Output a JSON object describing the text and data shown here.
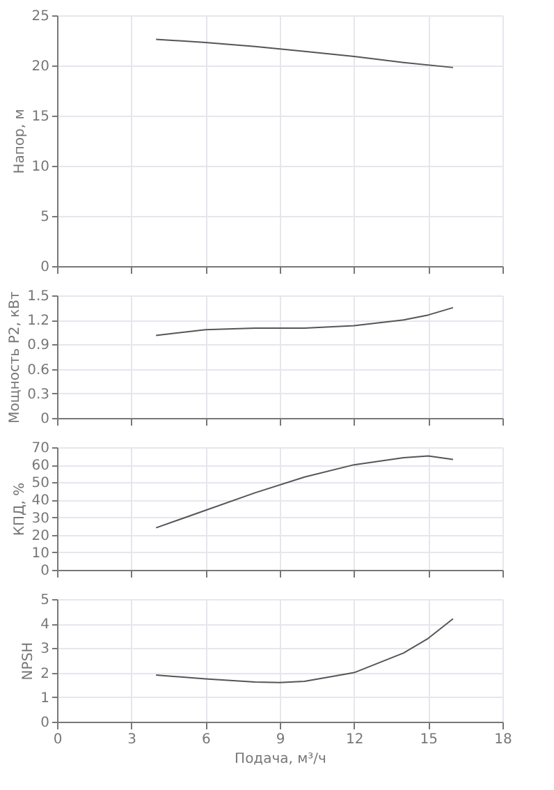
{
  "chart_data": [
    {
      "type": "line",
      "ylabel": "Напор, м",
      "x": [
        4,
        6,
        8,
        10,
        12,
        14,
        16
      ],
      "series": [
        {
          "color": "#555555",
          "values": [
            22.6,
            22.3,
            21.9,
            21.4,
            20.9,
            20.3,
            19.8
          ]
        }
      ],
      "xlim": [
        0,
        18
      ],
      "xticks": [
        0,
        3,
        6,
        9,
        12,
        15,
        18
      ],
      "ylim": [
        0,
        25
      ],
      "yticks": [
        0,
        5,
        10,
        15,
        20,
        25
      ],
      "grid": true,
      "tick_labels": "y"
    },
    {
      "type": "line",
      "ylabel": "Мощность P2, кВт",
      "x": [
        4,
        6,
        8,
        10,
        12,
        14,
        15,
        16
      ],
      "series": [
        {
          "color": "#555555",
          "values": [
            1.01,
            1.08,
            1.1,
            1.1,
            1.13,
            1.2,
            1.26,
            1.35
          ]
        }
      ],
      "xlim": [
        0,
        18
      ],
      "xticks": [
        0,
        3,
        6,
        9,
        12,
        15,
        18
      ],
      "ylim": [
        0,
        1.5
      ],
      "yticks": [
        0,
        0.3,
        0.6,
        0.9,
        1.2,
        1.5
      ],
      "grid": true,
      "tick_labels": "y"
    },
    {
      "type": "line",
      "ylabel": "КПД, %",
      "x": [
        4,
        6,
        8,
        10,
        12,
        14,
        15,
        16
      ],
      "series": [
        {
          "color": "#555555",
          "values": [
            24,
            34,
            44,
            53,
            60,
            64,
            65,
            63
          ]
        }
      ],
      "xlim": [
        0,
        18
      ],
      "xticks": [
        0,
        3,
        6,
        9,
        12,
        15,
        18
      ],
      "ylim": [
        0,
        70
      ],
      "yticks": [
        0,
        10,
        20,
        30,
        40,
        50,
        60,
        70
      ],
      "grid": true,
      "tick_labels": "y"
    },
    {
      "type": "line",
      "ylabel": "NPSH",
      "xlabel": "Подача, м³/ч",
      "x": [
        4,
        6,
        8,
        9,
        10,
        12,
        14,
        15,
        16
      ],
      "series": [
        {
          "color": "#555555",
          "values": [
            1.9,
            1.75,
            1.62,
            1.6,
            1.65,
            2.0,
            2.8,
            3.4,
            4.2
          ]
        }
      ],
      "xlim": [
        0,
        18
      ],
      "xticks": [
        0,
        3,
        6,
        9,
        12,
        15,
        18
      ],
      "ylim": [
        0,
        5
      ],
      "yticks": [
        0,
        1,
        2,
        3,
        4,
        5
      ],
      "grid": true
    }
  ]
}
